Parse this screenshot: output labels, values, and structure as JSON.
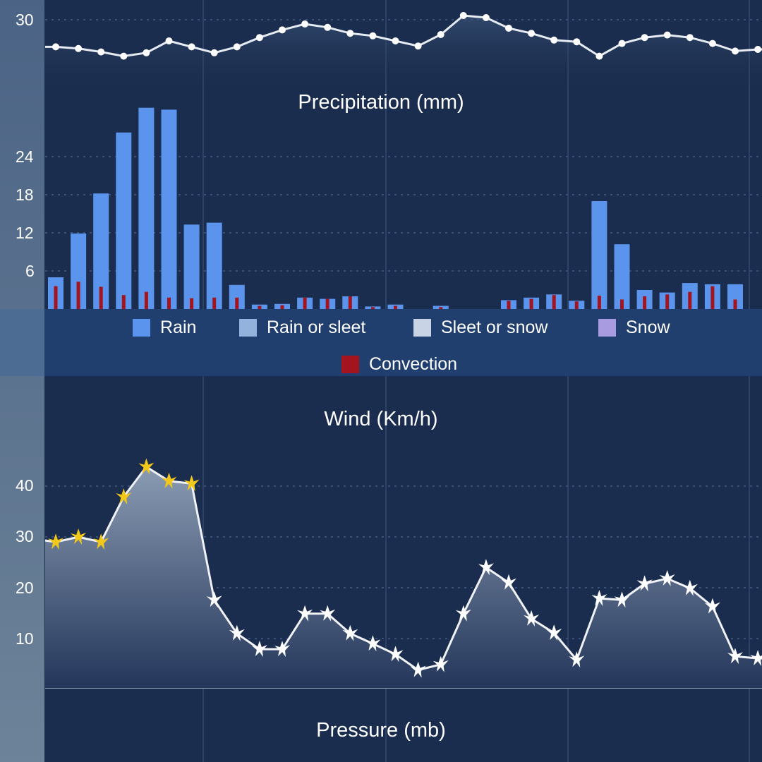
{
  "chart_data": [
    {
      "type": "line",
      "title": "",
      "ytick_labels": [
        "30"
      ],
      "values": [
        26.8,
        26.6,
        26.2,
        25.7,
        26.1,
        27.5,
        26.8,
        26.1,
        26.8,
        27.9,
        28.8,
        29.5,
        29.1,
        28.4,
        28.1,
        27.5,
        26.9,
        28.25,
        30.5,
        30.25,
        29,
        28.4,
        27.6,
        27.4,
        25.7,
        27.2,
        27.9,
        28.2,
        27.9,
        27.2,
        26.3,
        26.5
      ]
    },
    {
      "type": "bar",
      "title": "Precipitation (mm)",
      "ytick_labels": [
        "24",
        "18",
        "12",
        "6"
      ],
      "yticks": [
        24,
        18,
        12,
        6
      ],
      "ylim": [
        0,
        33
      ],
      "series": [
        {
          "name": "Rain",
          "color": "#5b94ec",
          "values": [
            5,
            11.9,
            18.2,
            27.8,
            31.7,
            31.4,
            13.3,
            13.6,
            3.8,
            0.7,
            0.8,
            1.8,
            1.6,
            2,
            0.4,
            0.7,
            0,
            0.5,
            0,
            0,
            1.4,
            1.8,
            2.3,
            1.3,
            17,
            10.2,
            3,
            2.6,
            4.1,
            3.9,
            3.9
          ]
        },
        {
          "name": "Convection",
          "color": "#a3141e",
          "values": [
            3.6,
            4.3,
            3.5,
            2.2,
            2.7,
            1.8,
            1.7,
            1.8,
            1.8,
            0.5,
            0.6,
            1.8,
            1.6,
            2,
            0.3,
            0.5,
            0,
            0.3,
            0,
            0,
            1.3,
            1.6,
            2.2,
            1.2,
            2.1,
            1.5,
            2,
            2.3,
            2.7,
            3.6,
            1.5
          ]
        }
      ],
      "legend": [
        {
          "name": "Rain",
          "color": "#5b94ec"
        },
        {
          "name": "Rain or sleet",
          "color": "#93b3dc"
        },
        {
          "name": "Sleet or snow",
          "color": "#c9d3e6"
        },
        {
          "name": "Snow",
          "color": "#a89be0"
        },
        {
          "name": "Convection",
          "color": "#a3141e"
        }
      ]
    },
    {
      "type": "area",
      "title": "Wind (Km/h)",
      "ytick_labels": [
        "40",
        "30",
        "20",
        "10"
      ],
      "yticks": [
        40,
        30,
        20,
        10
      ],
      "strong_color": "#f2c81a",
      "normal_color": "#ffffff",
      "values": [
        29,
        30,
        29,
        37.9,
        43.8,
        41,
        40.5,
        17.6,
        11,
        7.9,
        7.9,
        14.9,
        14.9,
        11,
        9,
        6.9,
        3.8,
        4.9,
        14.9,
        24,
        21,
        13.9,
        11.1,
        5.8,
        17.9,
        17.6,
        20.8,
        21.8,
        19.9,
        16.3,
        6.5,
        6.1
      ]
    },
    {
      "type": "line",
      "title": "Pressure (mb)"
    }
  ]
}
